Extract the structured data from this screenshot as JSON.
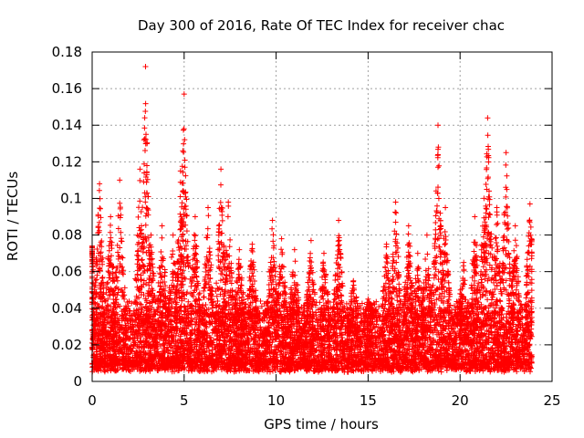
{
  "colors": {
    "series": "#ff0000",
    "axis": "#000000",
    "grid": "#a0a0a0",
    "background": "#ffffff"
  },
  "chart_data": {
    "type": "scatter",
    "title": "Day 300 of 2016, Rate Of TEC Index for receiver chac",
    "xlabel": "GPS time / hours",
    "ylabel": "ROTI / TECUs",
    "xlim": [
      0,
      25
    ],
    "ylim": [
      0,
      0.18
    ],
    "xticks": [
      0,
      5,
      10,
      15,
      20,
      25
    ],
    "yticks": [
      0,
      0.02,
      0.04,
      0.06,
      0.08,
      0.1,
      0.12,
      0.14,
      0.16,
      0.18
    ],
    "xtick_labels": [
      "0",
      "5",
      "10",
      "15",
      "20",
      "25"
    ],
    "ytick_labels": [
      "0",
      "0.02",
      "0.04",
      "0.06",
      "0.08",
      "0.1",
      "0.12",
      "0.14",
      "0.16",
      "0.18"
    ],
    "grid": true,
    "marker": "+",
    "series": [
      {
        "name": "ROTI",
        "x_range": [
          0,
          23.9
        ],
        "baseline_range": [
          0.005,
          0.04
        ],
        "peaks": [
          {
            "x": 0.0,
            "y": 0.074
          },
          {
            "x": 0.4,
            "y": 0.108
          },
          {
            "x": 1.0,
            "y": 0.09
          },
          {
            "x": 1.5,
            "y": 0.11
          },
          {
            "x": 2.6,
            "y": 0.116
          },
          {
            "x": 2.9,
            "y": 0.172
          },
          {
            "x": 3.2,
            "y": 0.08
          },
          {
            "x": 3.8,
            "y": 0.085
          },
          {
            "x": 4.4,
            "y": 0.08
          },
          {
            "x": 4.8,
            "y": 0.115
          },
          {
            "x": 5.0,
            "y": 0.157
          },
          {
            "x": 5.6,
            "y": 0.09
          },
          {
            "x": 6.3,
            "y": 0.095
          },
          {
            "x": 7.0,
            "y": 0.116
          },
          {
            "x": 7.4,
            "y": 0.098
          },
          {
            "x": 8.0,
            "y": 0.072
          },
          {
            "x": 8.7,
            "y": 0.075
          },
          {
            "x": 9.8,
            "y": 0.088
          },
          {
            "x": 10.3,
            "y": 0.078
          },
          {
            "x": 11.0,
            "y": 0.072
          },
          {
            "x": 11.9,
            "y": 0.077
          },
          {
            "x": 12.6,
            "y": 0.07
          },
          {
            "x": 13.4,
            "y": 0.088
          },
          {
            "x": 14.2,
            "y": 0.055
          },
          {
            "x": 15.0,
            "y": 0.045
          },
          {
            "x": 16.0,
            "y": 0.075
          },
          {
            "x": 16.5,
            "y": 0.098
          },
          {
            "x": 17.2,
            "y": 0.085
          },
          {
            "x": 17.7,
            "y": 0.07
          },
          {
            "x": 18.2,
            "y": 0.08
          },
          {
            "x": 18.8,
            "y": 0.14
          },
          {
            "x": 19.2,
            "y": 0.095
          },
          {
            "x": 20.2,
            "y": 0.065
          },
          {
            "x": 20.8,
            "y": 0.09
          },
          {
            "x": 21.3,
            "y": 0.1
          },
          {
            "x": 21.5,
            "y": 0.144
          },
          {
            "x": 22.0,
            "y": 0.095
          },
          {
            "x": 22.5,
            "y": 0.125
          },
          {
            "x": 23.0,
            "y": 0.085
          },
          {
            "x": 23.8,
            "y": 0.097
          }
        ]
      }
    ]
  }
}
